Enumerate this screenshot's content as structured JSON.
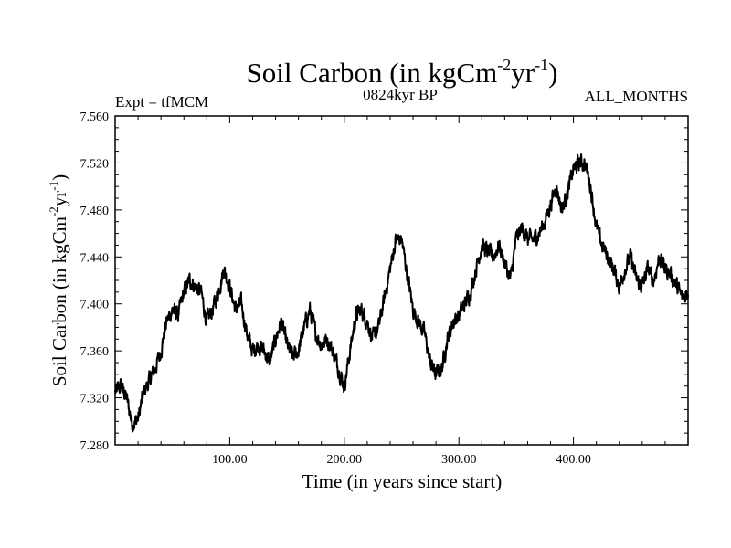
{
  "chart_data": {
    "type": "line",
    "title": "Soil Carbon (in kgCm",
    "title_sup1": "-2",
    "title_mid": "yr",
    "title_sup2": "-1",
    "title_end": ")",
    "left_label": "Expt = tfMCM",
    "center_label": "0824kyr BP",
    "right_label": "ALL_MONTHS",
    "xlabel": "Time (in years since start)",
    "ylabel": "Soil Carbon (in kgCm",
    "ylabel_sup1": "-2",
    "ylabel_mid": "yr",
    "ylabel_sup2": "-1",
    "ylabel_end": ")",
    "xlim": [
      0,
      500
    ],
    "ylim": [
      7.28,
      7.56
    ],
    "x_ticks": [
      100,
      200,
      300,
      400
    ],
    "x_tick_labels": [
      "100.00",
      "200.00",
      "300.00",
      "400.00"
    ],
    "y_ticks": [
      7.28,
      7.32,
      7.36,
      7.4,
      7.44,
      7.48,
      7.52,
      7.56
    ],
    "y_tick_labels": [
      "7.280",
      "7.320",
      "7.360",
      "7.400",
      "7.440",
      "7.480",
      "7.520",
      "7.560"
    ],
    "series": [
      {
        "name": "Soil Carbon",
        "x": [
          0,
          5,
          10,
          15,
          20,
          25,
          30,
          35,
          40,
          45,
          50,
          55,
          60,
          65,
          70,
          75,
          80,
          85,
          90,
          95,
          100,
          105,
          110,
          115,
          120,
          125,
          130,
          135,
          140,
          145,
          150,
          155,
          160,
          165,
          170,
          175,
          180,
          185,
          190,
          195,
          200,
          205,
          210,
          215,
          220,
          225,
          230,
          235,
          240,
          245,
          250,
          255,
          260,
          265,
          270,
          275,
          280,
          285,
          290,
          295,
          300,
          305,
          310,
          315,
          320,
          325,
          330,
          335,
          340,
          345,
          350,
          355,
          360,
          365,
          370,
          375,
          380,
          385,
          390,
          395,
          400,
          405,
          410,
          415,
          420,
          425,
          430,
          435,
          440,
          445,
          450,
          455,
          460,
          465,
          470,
          475,
          480,
          485,
          490,
          495,
          500
        ],
        "values": [
          7.325,
          7.33,
          7.32,
          7.298,
          7.302,
          7.325,
          7.335,
          7.345,
          7.36,
          7.385,
          7.395,
          7.39,
          7.41,
          7.42,
          7.415,
          7.41,
          7.385,
          7.395,
          7.41,
          7.43,
          7.415,
          7.395,
          7.4,
          7.375,
          7.36,
          7.365,
          7.36,
          7.35,
          7.37,
          7.385,
          7.365,
          7.355,
          7.36,
          7.38,
          7.395,
          7.375,
          7.365,
          7.37,
          7.36,
          7.345,
          7.33,
          7.36,
          7.39,
          7.395,
          7.385,
          7.37,
          7.38,
          7.405,
          7.43,
          7.455,
          7.455,
          7.425,
          7.395,
          7.385,
          7.375,
          7.35,
          7.34,
          7.345,
          7.37,
          7.385,
          7.39,
          7.4,
          7.41,
          7.43,
          7.45,
          7.445,
          7.44,
          7.45,
          7.435,
          7.42,
          7.455,
          7.465,
          7.455,
          7.455,
          7.46,
          7.47,
          7.485,
          7.5,
          7.48,
          7.495,
          7.515,
          7.52,
          7.52,
          7.5,
          7.465,
          7.45,
          7.44,
          7.43,
          7.415,
          7.43,
          7.44,
          7.42,
          7.415,
          7.43,
          7.42,
          7.44,
          7.43,
          7.425,
          7.415,
          7.405,
          7.41
        ]
      }
    ]
  }
}
